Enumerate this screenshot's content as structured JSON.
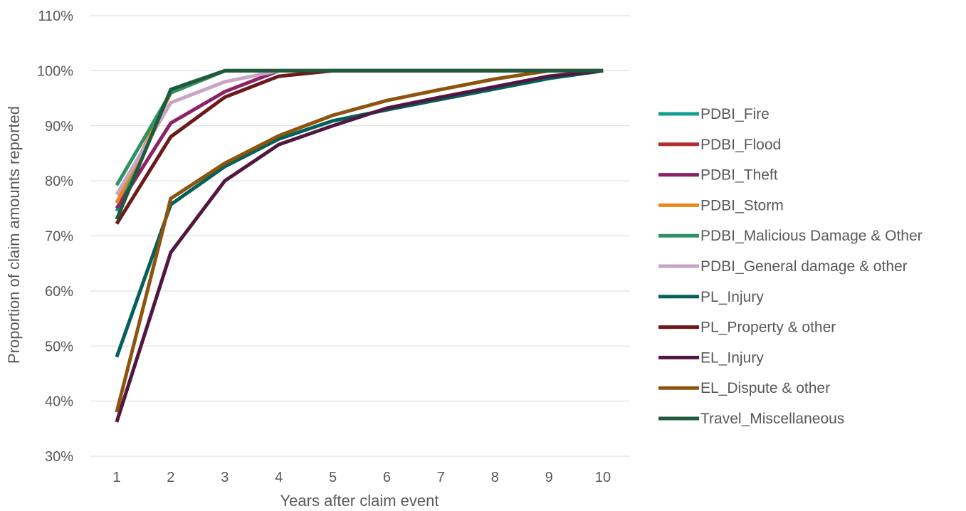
{
  "chart_data": {
    "type": "line",
    "title": "",
    "xlabel": "Years after claim event",
    "ylabel": "Proportion of claim amounts reported",
    "x": [
      1,
      2,
      3,
      4,
      5,
      6,
      7,
      8,
      9,
      10
    ],
    "ylim": [
      0.3,
      1.1
    ],
    "yticks": [
      "30%",
      "40%",
      "50%",
      "60%",
      "70%",
      "80%",
      "90%",
      "100%",
      "110%"
    ],
    "xticks": [
      "1",
      "2",
      "3",
      "4",
      "5",
      "6",
      "7",
      "8",
      "9",
      "10"
    ],
    "grid": "horizontal",
    "legend_position": "right",
    "series": [
      {
        "name": "PDBI_Fire",
        "color": "#119f92",
        "values": [
          0.745,
          0.962,
          1.0,
          1.0,
          1.0,
          1.0,
          1.0,
          1.0,
          1.0,
          1.0
        ]
      },
      {
        "name": "PDBI_Flood",
        "color": "#b22e33",
        "values": [
          0.76,
          0.96,
          1.0,
          1.0,
          1.0,
          1.0,
          1.0,
          1.0,
          1.0,
          1.0
        ]
      },
      {
        "name": "PDBI_Theft",
        "color": "#8d2366",
        "values": [
          0.75,
          0.905,
          0.962,
          1.0,
          1.0,
          1.0,
          1.0,
          1.0,
          1.0,
          1.0
        ]
      },
      {
        "name": "PDBI_Storm",
        "color": "#e8891a",
        "values": [
          0.76,
          0.96,
          1.0,
          1.0,
          1.0,
          1.0,
          1.0,
          1.0,
          1.0,
          1.0
        ]
      },
      {
        "name": "PDBI_Malicious Damage & Other",
        "color": "#2f9164",
        "values": [
          0.792,
          0.96,
          1.0,
          1.0,
          1.0,
          1.0,
          1.0,
          1.0,
          1.0,
          1.0
        ]
      },
      {
        "name": "PDBI_General damage & other",
        "color": "#c9a5c5",
        "values": [
          0.775,
          0.942,
          0.98,
          1.0,
          1.0,
          1.0,
          1.0,
          1.0,
          1.0,
          1.0
        ]
      },
      {
        "name": "PL_Injury",
        "color": "#03605a",
        "values": [
          0.48,
          0.757,
          0.826,
          0.876,
          0.909,
          0.929,
          0.948,
          0.967,
          0.986,
          1.0
        ]
      },
      {
        "name": "PL_Property & other",
        "color": "#6d1a1a",
        "values": [
          0.722,
          0.88,
          0.952,
          0.99,
          1.0,
          1.0,
          1.0,
          1.0,
          1.0,
          1.0
        ]
      },
      {
        "name": "EL_Injury",
        "color": "#511741",
        "values": [
          0.362,
          0.67,
          0.8,
          0.866,
          0.9,
          0.932,
          0.952,
          0.971,
          0.99,
          1.0
        ]
      },
      {
        "name": "EL_Dispute & other",
        "color": "#8d540f",
        "values": [
          0.38,
          0.768,
          0.832,
          0.882,
          0.919,
          0.946,
          0.966,
          0.985,
          1.0,
          1.0
        ]
      },
      {
        "name": "Travel_Miscellaneous",
        "color": "#1e5b3c",
        "values": [
          0.73,
          0.966,
          1.0,
          1.0,
          1.0,
          1.0,
          1.0,
          1.0,
          1.0,
          1.0
        ]
      }
    ]
  }
}
